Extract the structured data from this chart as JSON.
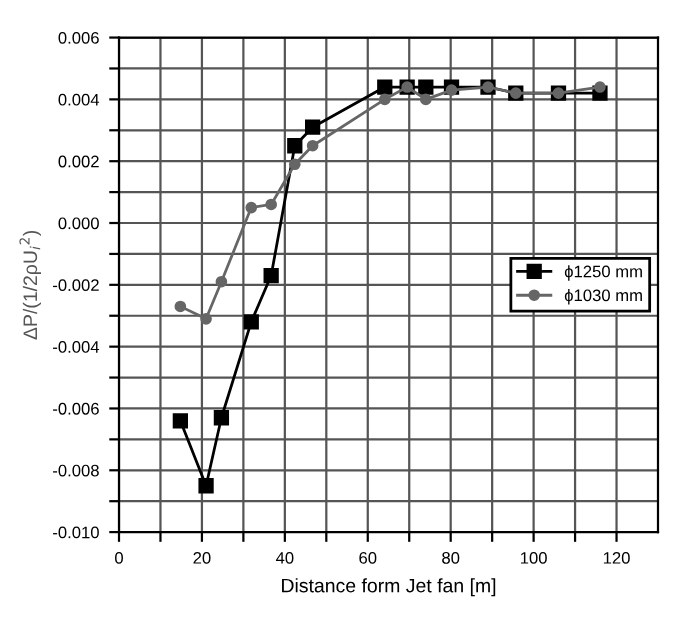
{
  "chart_data": {
    "type": "line",
    "xlabel": "Distance form Jet fan [m]",
    "ylabel": "ΔP/(1/2ρU$_{i}$$^{2}$)",
    "xlim": [
      0,
      130
    ],
    "ylim": [
      -0.01,
      0.006
    ],
    "xticks": [
      0,
      {
        "value": 10,
        "label": null
      },
      20,
      {
        "value": 30,
        "label": null
      },
      40,
      {
        "value": 50,
        "label": null
      },
      60,
      {
        "value": 70,
        "label": null
      },
      80,
      {
        "value": 90,
        "label": null
      },
      100,
      {
        "value": 110,
        "label": null
      },
      120
    ],
    "yticks": [
      {
        "value": -0.01,
        "label": "-0.010"
      },
      {
        "value": -0.009,
        "label": null
      },
      {
        "value": -0.008,
        "label": "-0.008"
      },
      {
        "value": -0.007,
        "label": null
      },
      {
        "value": -0.006,
        "label": "-0.006"
      },
      {
        "value": -0.005,
        "label": null
      },
      {
        "value": -0.004,
        "label": "-0.004"
      },
      {
        "value": -0.003,
        "label": null
      },
      {
        "value": -0.002,
        "label": "-0.002"
      },
      {
        "value": -0.001,
        "label": null
      },
      {
        "value": 0.0,
        "label": "0.000"
      },
      {
        "value": 0.001,
        "label": null
      },
      {
        "value": 0.002,
        "label": "0.002"
      },
      {
        "value": 0.003,
        "label": null
      },
      {
        "value": 0.004,
        "label": "0.004"
      },
      {
        "value": 0.005,
        "label": null
      },
      {
        "value": 0.006,
        "label": "0.006"
      }
    ],
    "grid": true,
    "legend": "right",
    "series": [
      {
        "name": "ϕ1250 mm",
        "color": "#000000",
        "marker": "square",
        "x": [
          14.8,
          21,
          24.7,
          31.9,
          36.7,
          42.4,
          46.7,
          64.1,
          69.5,
          74,
          80.2,
          89,
          95.7,
          106,
          116
        ],
        "values": [
          -0.0064,
          -0.0085,
          -0.0063,
          -0.0032,
          -0.0017,
          0.0025,
          0.0031,
          0.0044,
          0.0044,
          0.0044,
          0.0044,
          0.0044,
          0.0042,
          0.0042,
          0.0042
        ]
      },
      {
        "name": "ϕ1030 mm",
        "color": "#666666",
        "marker": "circle",
        "x": [
          14.8,
          21,
          24.7,
          31.9,
          36.7,
          42.4,
          46.7,
          64.1,
          69.5,
          74,
          80.2,
          89,
          95.7,
          106,
          116
        ],
        "values": [
          -0.0027,
          -0.0031,
          -0.0019,
          0.0005,
          0.0006,
          0.0019,
          0.0025,
          0.004,
          0.0044,
          0.004,
          0.0043,
          0.0044,
          0.0042,
          0.0042,
          0.0044
        ]
      }
    ]
  }
}
